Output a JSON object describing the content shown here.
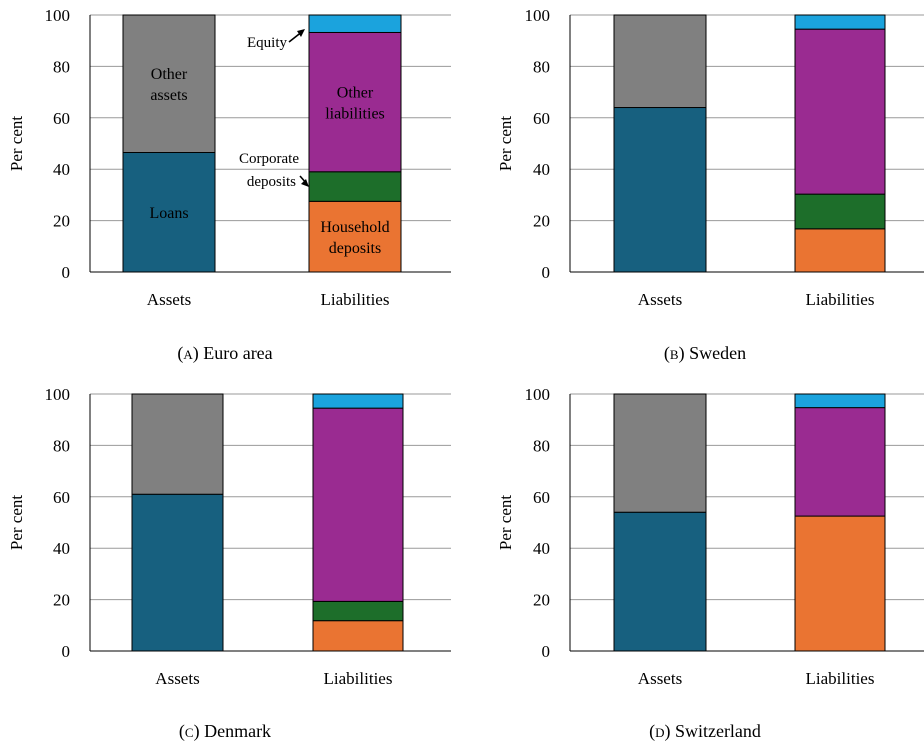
{
  "colors": {
    "loans": "#17607f",
    "other_assets": "#808080",
    "household_deposits": "#ea7432",
    "corporate_deposits": "#1d6e2a",
    "other_liabilities": "#9a2b91",
    "equity": "#1ba3dd"
  },
  "chart_data": [
    {
      "type": "bar",
      "stacked": true,
      "caption": "(a) Euro area",
      "caption_letter": "a",
      "caption_name": "Euro area",
      "ylabel": "Per cent",
      "ylim": [
        0,
        100
      ],
      "yticks": [
        "0",
        "20",
        "40",
        "60",
        "80",
        "100"
      ],
      "categories": [
        "Assets",
        "Liabilities"
      ],
      "grid": true,
      "series": [
        {
          "key": "loans",
          "name": "Loans",
          "values": [
            46.5,
            null
          ]
        },
        {
          "key": "other_assets",
          "name": "Other\nassets",
          "values": [
            53.5,
            null
          ]
        },
        {
          "key": "household_deposits",
          "name": "Household\ndeposits",
          "values": [
            null,
            27.5
          ]
        },
        {
          "key": "corporate_deposits",
          "name": "Corporate\ndeposits",
          "values": [
            null,
            11.5
          ]
        },
        {
          "key": "other_liabilities",
          "name": "Other\nliabilities",
          "values": [
            null,
            54.2
          ]
        },
        {
          "key": "equity",
          "name": "Equity",
          "values": [
            null,
            6.8
          ]
        }
      ]
    },
    {
      "type": "bar",
      "stacked": true,
      "caption": "(b) Sweden",
      "caption_letter": "b",
      "caption_name": "Sweden",
      "ylabel": "Per cent",
      "ylim": [
        0,
        100
      ],
      "yticks": [
        "0",
        "20",
        "40",
        "60",
        "80",
        "100"
      ],
      "categories": [
        "Assets",
        "Liabilities"
      ],
      "grid": true,
      "series": [
        {
          "key": "loans",
          "values": [
            64,
            null
          ]
        },
        {
          "key": "other_assets",
          "values": [
            36,
            null
          ]
        },
        {
          "key": "household_deposits",
          "values": [
            null,
            16.8
          ]
        },
        {
          "key": "corporate_deposits",
          "values": [
            null,
            13.5
          ]
        },
        {
          "key": "other_liabilities",
          "values": [
            null,
            64.2
          ]
        },
        {
          "key": "equity",
          "values": [
            null,
            5.5
          ]
        }
      ]
    },
    {
      "type": "bar",
      "stacked": true,
      "caption": "(c) Denmark",
      "caption_letter": "c",
      "caption_name": "Denmark",
      "ylabel": "Per cent",
      "ylim": [
        0,
        100
      ],
      "yticks": [
        "0",
        "20",
        "40",
        "60",
        "80",
        "100"
      ],
      "categories": [
        "Assets",
        "Liabilities"
      ],
      "grid": true,
      "series": [
        {
          "key": "loans",
          "values": [
            61,
            null
          ]
        },
        {
          "key": "other_assets",
          "values": [
            39,
            null
          ]
        },
        {
          "key": "household_deposits",
          "values": [
            null,
            11.8
          ]
        },
        {
          "key": "corporate_deposits",
          "values": [
            null,
            7.5
          ]
        },
        {
          "key": "other_liabilities",
          "values": [
            null,
            75.2
          ]
        },
        {
          "key": "equity",
          "values": [
            null,
            5.5
          ]
        }
      ]
    },
    {
      "type": "bar",
      "stacked": true,
      "caption": "(d) Switzerland",
      "caption_letter": "d",
      "caption_name": "Switzerland",
      "ylabel": "Per cent",
      "ylim": [
        0,
        100
      ],
      "yticks": [
        "0",
        "20",
        "40",
        "60",
        "80",
        "100"
      ],
      "categories": [
        "Assets",
        "Liabilities"
      ],
      "grid": true,
      "series": [
        {
          "key": "loans",
          "values": [
            54,
            null
          ]
        },
        {
          "key": "other_assets",
          "values": [
            46,
            null
          ]
        },
        {
          "key": "household_deposits",
          "values": [
            null,
            52.5
          ]
        },
        {
          "key": "corporate_deposits",
          "values": [
            null,
            0
          ]
        },
        {
          "key": "other_liabilities",
          "values": [
            null,
            42.2
          ]
        },
        {
          "key": "equity",
          "values": [
            null,
            5.3
          ]
        }
      ]
    }
  ]
}
